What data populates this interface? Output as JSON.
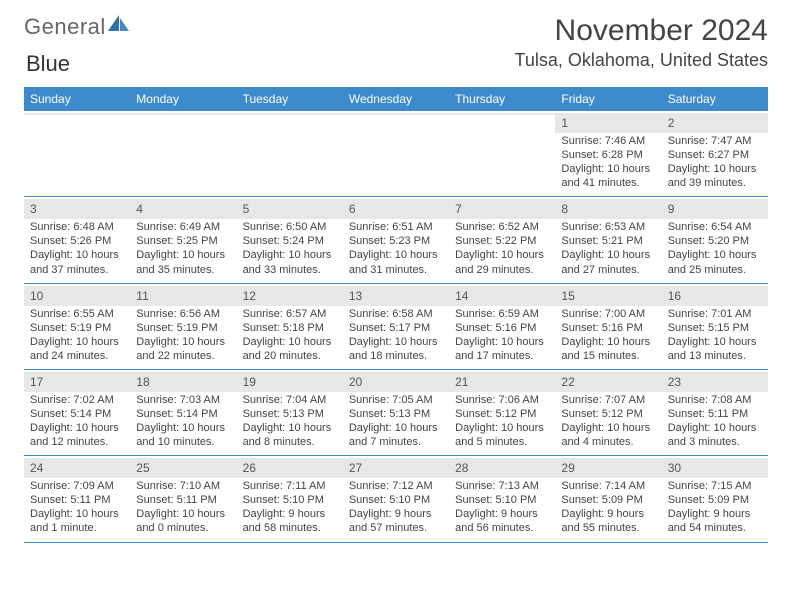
{
  "logo": {
    "text1": "General",
    "text2": "Blue"
  },
  "title": "November 2024",
  "location": "Tulsa, Oklahoma, United States",
  "colors": {
    "header_bar": "#3d8bcd",
    "daynum_bg": "#e7e7e7",
    "rule": "#3d8bcd",
    "text": "#444444"
  },
  "dow": [
    "Sunday",
    "Monday",
    "Tuesday",
    "Wednesday",
    "Thursday",
    "Friday",
    "Saturday"
  ],
  "weeks": [
    [
      null,
      null,
      null,
      null,
      null,
      {
        "n": "1",
        "sunrise": "7:46 AM",
        "sunset": "6:28 PM",
        "daylight": "10 hours and 41 minutes."
      },
      {
        "n": "2",
        "sunrise": "7:47 AM",
        "sunset": "6:27 PM",
        "daylight": "10 hours and 39 minutes."
      }
    ],
    [
      {
        "n": "3",
        "sunrise": "6:48 AM",
        "sunset": "5:26 PM",
        "daylight": "10 hours and 37 minutes."
      },
      {
        "n": "4",
        "sunrise": "6:49 AM",
        "sunset": "5:25 PM",
        "daylight": "10 hours and 35 minutes."
      },
      {
        "n": "5",
        "sunrise": "6:50 AM",
        "sunset": "5:24 PM",
        "daylight": "10 hours and 33 minutes."
      },
      {
        "n": "6",
        "sunrise": "6:51 AM",
        "sunset": "5:23 PM",
        "daylight": "10 hours and 31 minutes."
      },
      {
        "n": "7",
        "sunrise": "6:52 AM",
        "sunset": "5:22 PM",
        "daylight": "10 hours and 29 minutes."
      },
      {
        "n": "8",
        "sunrise": "6:53 AM",
        "sunset": "5:21 PM",
        "daylight": "10 hours and 27 minutes."
      },
      {
        "n": "9",
        "sunrise": "6:54 AM",
        "sunset": "5:20 PM",
        "daylight": "10 hours and 25 minutes."
      }
    ],
    [
      {
        "n": "10",
        "sunrise": "6:55 AM",
        "sunset": "5:19 PM",
        "daylight": "10 hours and 24 minutes."
      },
      {
        "n": "11",
        "sunrise": "6:56 AM",
        "sunset": "5:19 PM",
        "daylight": "10 hours and 22 minutes."
      },
      {
        "n": "12",
        "sunrise": "6:57 AM",
        "sunset": "5:18 PM",
        "daylight": "10 hours and 20 minutes."
      },
      {
        "n": "13",
        "sunrise": "6:58 AM",
        "sunset": "5:17 PM",
        "daylight": "10 hours and 18 minutes."
      },
      {
        "n": "14",
        "sunrise": "6:59 AM",
        "sunset": "5:16 PM",
        "daylight": "10 hours and 17 minutes."
      },
      {
        "n": "15",
        "sunrise": "7:00 AM",
        "sunset": "5:16 PM",
        "daylight": "10 hours and 15 minutes."
      },
      {
        "n": "16",
        "sunrise": "7:01 AM",
        "sunset": "5:15 PM",
        "daylight": "10 hours and 13 minutes."
      }
    ],
    [
      {
        "n": "17",
        "sunrise": "7:02 AM",
        "sunset": "5:14 PM",
        "daylight": "10 hours and 12 minutes."
      },
      {
        "n": "18",
        "sunrise": "7:03 AM",
        "sunset": "5:14 PM",
        "daylight": "10 hours and 10 minutes."
      },
      {
        "n": "19",
        "sunrise": "7:04 AM",
        "sunset": "5:13 PM",
        "daylight": "10 hours and 8 minutes."
      },
      {
        "n": "20",
        "sunrise": "7:05 AM",
        "sunset": "5:13 PM",
        "daylight": "10 hours and 7 minutes."
      },
      {
        "n": "21",
        "sunrise": "7:06 AM",
        "sunset": "5:12 PM",
        "daylight": "10 hours and 5 minutes."
      },
      {
        "n": "22",
        "sunrise": "7:07 AM",
        "sunset": "5:12 PM",
        "daylight": "10 hours and 4 minutes."
      },
      {
        "n": "23",
        "sunrise": "7:08 AM",
        "sunset": "5:11 PM",
        "daylight": "10 hours and 3 minutes."
      }
    ],
    [
      {
        "n": "24",
        "sunrise": "7:09 AM",
        "sunset": "5:11 PM",
        "daylight": "10 hours and 1 minute."
      },
      {
        "n": "25",
        "sunrise": "7:10 AM",
        "sunset": "5:11 PM",
        "daylight": "10 hours and 0 minutes."
      },
      {
        "n": "26",
        "sunrise": "7:11 AM",
        "sunset": "5:10 PM",
        "daylight": "9 hours and 58 minutes."
      },
      {
        "n": "27",
        "sunrise": "7:12 AM",
        "sunset": "5:10 PM",
        "daylight": "9 hours and 57 minutes."
      },
      {
        "n": "28",
        "sunrise": "7:13 AM",
        "sunset": "5:10 PM",
        "daylight": "9 hours and 56 minutes."
      },
      {
        "n": "29",
        "sunrise": "7:14 AM",
        "sunset": "5:09 PM",
        "daylight": "9 hours and 55 minutes."
      },
      {
        "n": "30",
        "sunrise": "7:15 AM",
        "sunset": "5:09 PM",
        "daylight": "9 hours and 54 minutes."
      }
    ]
  ],
  "labels": {
    "sunrise": "Sunrise: ",
    "sunset": "Sunset: ",
    "daylight": "Daylight: "
  }
}
